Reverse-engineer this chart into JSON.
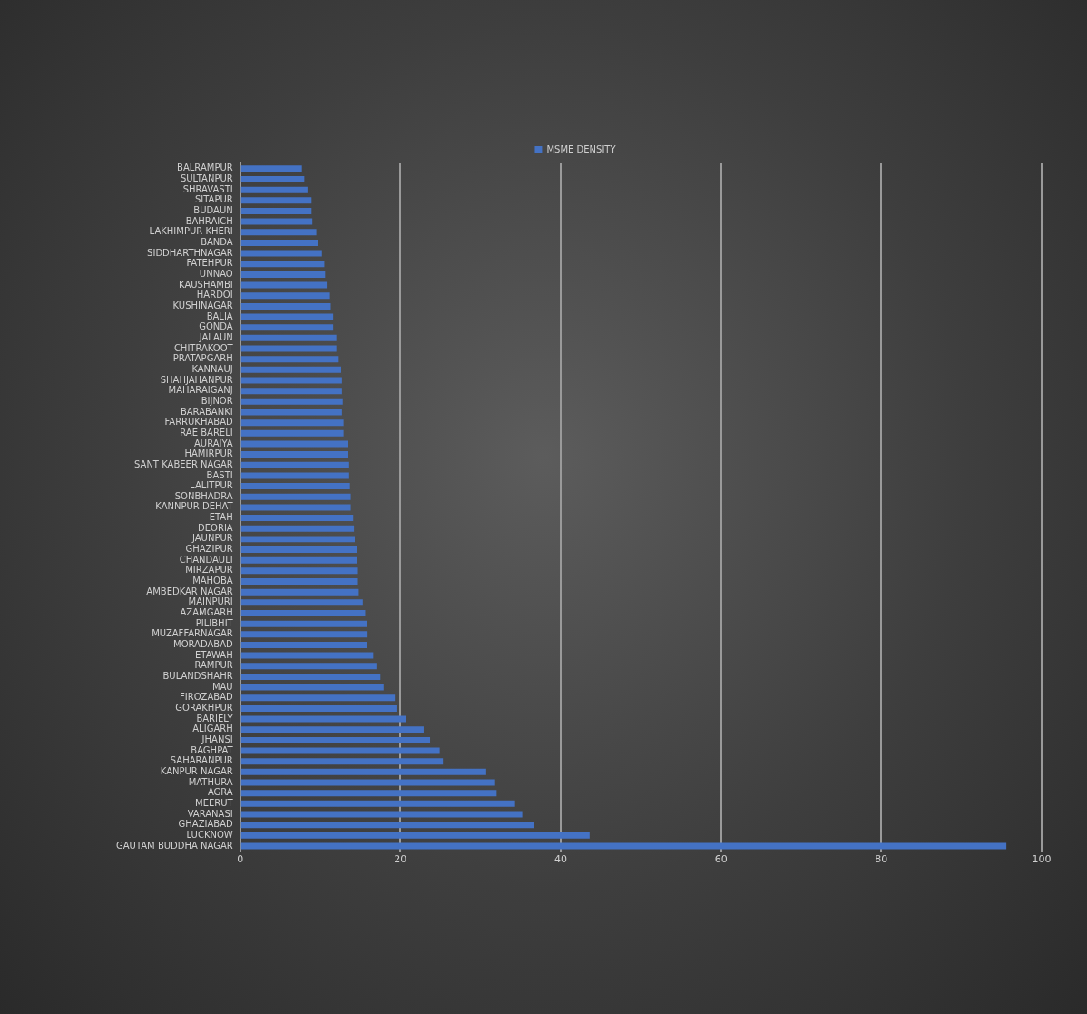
{
  "chart_data": {
    "type": "bar",
    "orientation": "horizontal",
    "categories": [
      "BALRAMPUR",
      "SULTANPUR",
      "SHRAVASTI",
      "SITAPUR",
      "BUDAUN",
      "BAHRAICH",
      "LAKHIMPUR KHERI",
      "BANDA",
      "SIDDHARTHNAGAR",
      "FATEHPUR",
      "UNNAO",
      "KAUSHAMBI",
      "HARDOI",
      "KUSHINAGAR",
      "BALIA",
      "GONDA",
      "JALAUN",
      "CHITRAKOOT",
      "PRATAPGARH",
      "KANNAUJ",
      "SHAHJAHANPUR",
      "MAHARAIGANJ",
      "BIJNOR",
      "BARABANKI",
      "FARRUKHABAD",
      "RAE BARELI",
      "AURAIYA",
      "HAMIRPUR",
      "SANT KABEER NAGAR",
      "BASTI",
      "LALITPUR",
      "SONBHADRA",
      "KANNPUR DEHAT",
      "ETAH",
      "DEORIA",
      "JAUNPUR",
      "GHAZIPUR",
      "CHANDAULI",
      "MIRZAPUR",
      "MAHOBA",
      "AMBEDKAR NAGAR",
      "MAINPURI",
      "AZAMGARH",
      "PILIBHIT",
      "MUZAFFARNAGAR",
      "MORADABAD",
      "ETAWAH",
      "RAMPUR",
      "BULANDSHAHR",
      "MAU",
      "FIROZABAD",
      "GORAKHPUR",
      "BARIELY",
      "ALIGARH",
      "JHANSI",
      "BAGHPAT",
      "SAHARANPUR",
      "KANPUR NAGAR",
      "MATHURA",
      "AGRA",
      "MEERUT",
      "VARANASI",
      "GHAZIABAD",
      "LUCKNOW",
      "GAUTAM BUDDHA NAGAR"
    ],
    "series": [
      {
        "name": "MSME DENSITY",
        "color": "#4472c4",
        "values": [
          7.7,
          8.0,
          8.4,
          8.9,
          8.9,
          9.0,
          9.5,
          9.7,
          10.2,
          10.5,
          10.6,
          10.8,
          11.2,
          11.3,
          11.6,
          11.6,
          12.0,
          12.0,
          12.3,
          12.6,
          12.7,
          12.7,
          12.8,
          12.7,
          12.9,
          12.9,
          13.4,
          13.4,
          13.6,
          13.6,
          13.7,
          13.8,
          13.8,
          14.1,
          14.2,
          14.3,
          14.6,
          14.6,
          14.7,
          14.7,
          14.8,
          15.3,
          15.6,
          15.8,
          15.9,
          15.8,
          16.6,
          17.0,
          17.5,
          17.9,
          19.3,
          19.5,
          20.7,
          22.9,
          23.7,
          24.9,
          25.3,
          30.7,
          31.7,
          32.0,
          34.3,
          35.2,
          36.7,
          43.6,
          95.6
        ]
      }
    ],
    "xlim": [
      0,
      100
    ],
    "xticks": [
      0,
      20,
      40,
      60,
      80,
      100
    ],
    "grid": "x",
    "legend": "top"
  }
}
